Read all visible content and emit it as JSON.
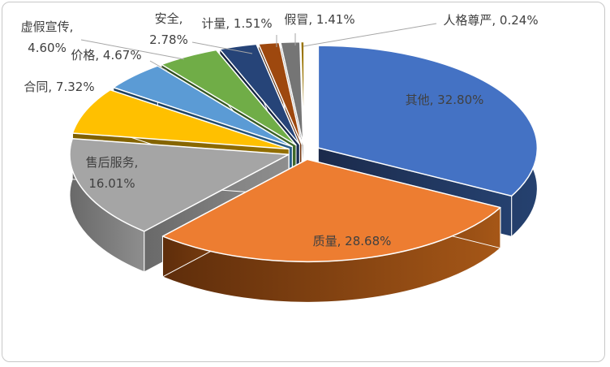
{
  "chart_data": {
    "type": "pie",
    "style": "3d-exploded-pie",
    "title": "",
    "legend": "none",
    "label_format": "{label}, {pct}",
    "label_color": "#404040",
    "leader_line_color": "#A6A6A6",
    "background": "#FFFFFF",
    "border_color": "#C8C8C8",
    "slices": [
      {
        "key": "other",
        "label": "其他",
        "value": 32.8,
        "pct_text": "32.80%",
        "color": "#4472C4",
        "side_dark": "#1B2A4B",
        "side_light": "#25416F"
      },
      {
        "key": "quality",
        "label": "质量",
        "value": 28.68,
        "pct_text": "28.68%",
        "color": "#ED7D31",
        "side_dark": "#5E2D0B",
        "side_light": "#A65717"
      },
      {
        "key": "after-sales-service",
        "label": "售后服务",
        "value": 16.01,
        "pct_text": "16.01%",
        "color": "#A5A5A5",
        "side_dark": "#696969",
        "side_light": "#8E8E8E"
      },
      {
        "key": "contract",
        "label": "合同",
        "value": 7.32,
        "pct_text": "7.32%",
        "color": "#FFC000",
        "side_dark": "#7F6000",
        "side_light": "#947000"
      },
      {
        "key": "price",
        "label": "价格",
        "value": 4.67,
        "pct_text": "4.67%",
        "color": "#5B9BD5",
        "side_dark": "#1C3F5E",
        "side_light": "#2B5F88"
      },
      {
        "key": "false-advertising",
        "label": "虚假宣传",
        "value": 4.6,
        "pct_text": "4.60%",
        "color": "#70AD47",
        "side_dark": "#2F4D1E",
        "side_light": "#406929"
      },
      {
        "key": "safety",
        "label": "安全",
        "value": 2.78,
        "pct_text": "2.78%",
        "color": "#264478",
        "side_dark": "#111F38",
        "side_light": "#1B3054"
      },
      {
        "key": "measurement",
        "label": "计量",
        "value": 1.51,
        "pct_text": "1.51%",
        "color": "#9E480E",
        "side_dark": "#4A2106",
        "side_light": "#6E3109"
      },
      {
        "key": "counterfeit",
        "label": "假冒",
        "value": 1.41,
        "pct_text": "1.41%",
        "color": "#757575",
        "side_dark": "#3D3D3D",
        "side_light": "#555555"
      },
      {
        "key": "personal-dignity",
        "label": "人格尊严",
        "value": 0.24,
        "pct_text": "0.24%",
        "color": "#997300",
        "side_dark": "#4D3900",
        "side_light": "#6B5000"
      }
    ]
  }
}
